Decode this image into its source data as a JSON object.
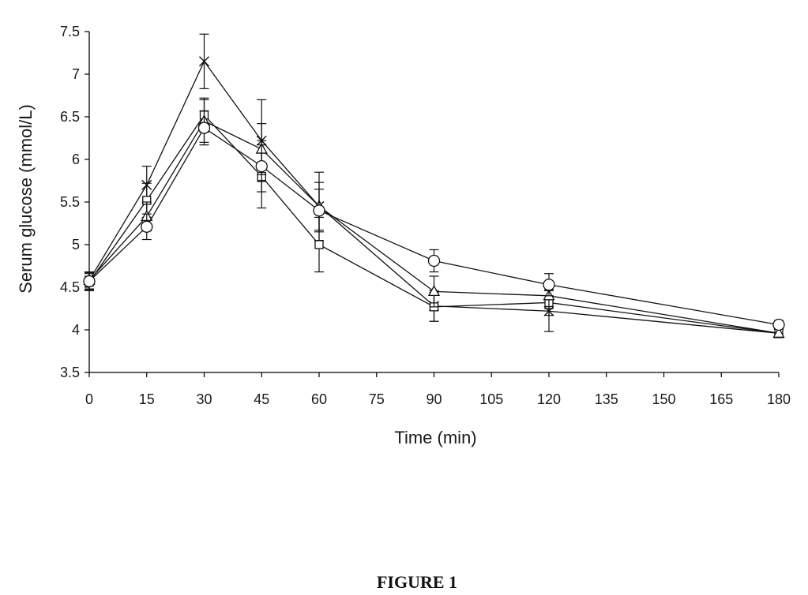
{
  "figure": {
    "caption": "FIGURE 1"
  },
  "chart_data": {
    "type": "line",
    "xlabel": "Time (min)",
    "ylabel": "Serum glucose (mmol/L)",
    "xlim": [
      0,
      180
    ],
    "ylim": [
      3.5,
      7.5
    ],
    "xticks": [
      0,
      15,
      30,
      45,
      60,
      75,
      90,
      105,
      120,
      135,
      150,
      165,
      180
    ],
    "yticks": [
      3.5,
      4,
      4.5,
      5,
      5.5,
      6,
      6.5,
      7,
      7.5
    ],
    "ytick_labels": [
      "3.5",
      "4",
      "4.5",
      "5",
      "5.5",
      "6",
      "6.5",
      "7",
      "7.5"
    ],
    "grid": false,
    "legend": "none",
    "x": [
      0,
      15,
      30,
      45,
      60,
      90,
      120,
      180
    ],
    "series": [
      {
        "marker": "cross",
        "values": [
          4.58,
          5.7,
          7.15,
          6.22,
          5.45,
          4.28,
          4.22,
          3.96
        ],
        "errors": [
          0.1,
          0.22,
          0.32,
          0.48,
          0.4,
          0.18,
          0.24,
          0.05
        ]
      },
      {
        "marker": "square",
        "values": [
          4.56,
          5.52,
          6.52,
          5.8,
          5.0,
          4.27,
          4.32,
          3.96
        ],
        "errors": [
          0.1,
          0.2,
          0.2,
          0.37,
          0.32,
          0.17,
          0.15,
          0.05
        ]
      },
      {
        "marker": "triangle",
        "values": [
          4.58,
          5.33,
          6.45,
          6.12,
          5.45,
          4.45,
          4.4,
          3.96
        ],
        "errors": [
          0.1,
          0.17,
          0.25,
          0.3,
          0.28,
          0.18,
          0.15,
          0.05
        ]
      },
      {
        "marker": "circle",
        "values": [
          4.57,
          5.21,
          6.37,
          5.92,
          5.4,
          4.81,
          4.53,
          4.06
        ],
        "errors": [
          0.1,
          0.15,
          0.2,
          0.3,
          0.25,
          0.13,
          0.13,
          0.05
        ]
      }
    ]
  }
}
